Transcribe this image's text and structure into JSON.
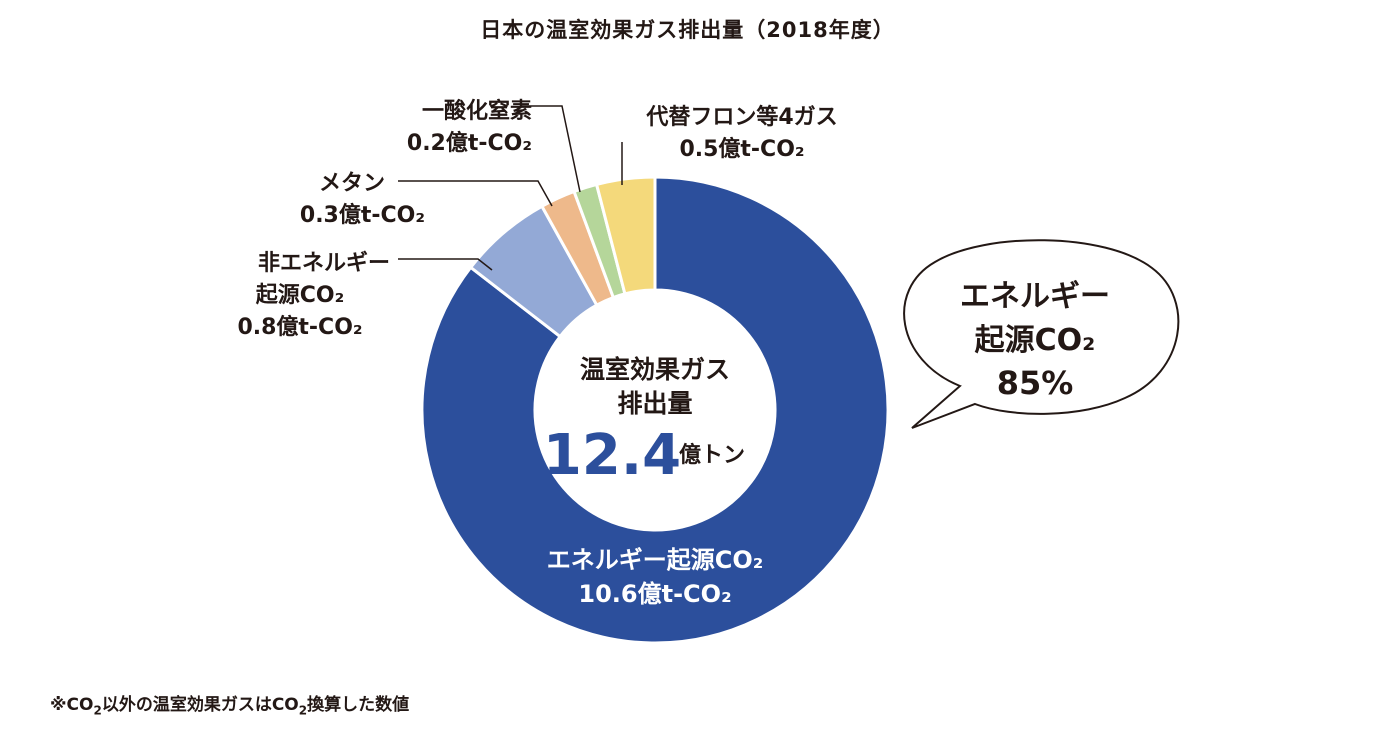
{
  "chart_data": {
    "type": "pie",
    "variant": "donut",
    "title": "日本の温室効果ガス排出量（2018年度）",
    "unit": "億t-CO₂",
    "slices": [
      {
        "label_line1": "エネルギー起源CO₂",
        "value": 10.6,
        "value_text": "10.6億t-CO₂",
        "color": "#2c4f9c"
      },
      {
        "label_line1": "非エネルギー",
        "label_line2": "起源CO₂",
        "value": 0.8,
        "value_text": "0.8億t-CO₂",
        "color": "#93a9d6"
      },
      {
        "label_line1": "メタン",
        "value": 0.3,
        "value_text": "0.3億t-CO₂",
        "color": "#eeb98b"
      },
      {
        "label_line1": "一酸化窒素",
        "value": 0.2,
        "value_text": "0.2億t-CO₂",
        "color": "#b5d69a"
      },
      {
        "label_line1": "代替フロン等4ガス",
        "value": 0.5,
        "value_text": "0.5億t-CO₂",
        "color": "#f4d97b"
      }
    ],
    "center": {
      "line1": "温室効果ガス",
      "line2": "排出量",
      "value": "12.4",
      "unit": "億トン"
    },
    "callout": {
      "line1": "エネルギー",
      "line2": "起源CO₂",
      "line3": "85%"
    }
  },
  "footnote": {
    "part1": "※CO",
    "sub1": "2",
    "part2": "以外の温室効果ガスはCO",
    "sub2": "2",
    "part3": "換算した数値"
  }
}
